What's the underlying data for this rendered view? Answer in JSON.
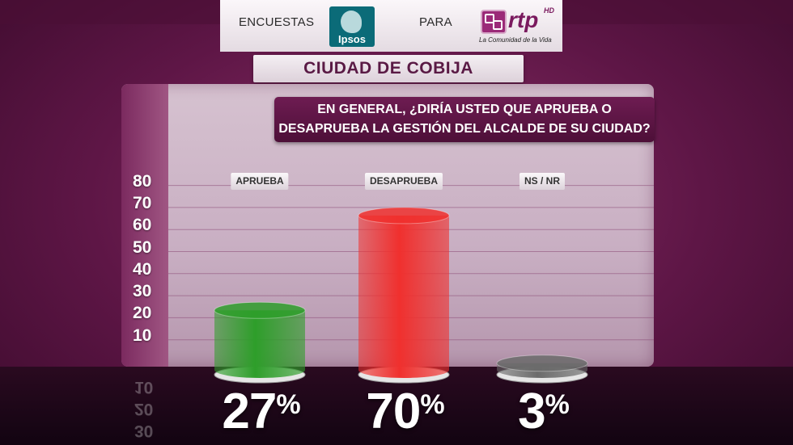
{
  "header": {
    "left_text": "ENCUESTAS",
    "middle_text": "PARA",
    "pollster_logo": "Ipsos",
    "channel_logo": "rtp",
    "channel_badge": "HD",
    "channel_tagline": "La Comunidad de la Vida"
  },
  "city": "CIUDAD DE COBIJA",
  "question_lines": [
    "EN GENERAL, ¿DIRÍA USTED QUE APRUEBA O",
    "DESAPRUEBA LA GESTIÓN DEL ALCALDE DE SU CIUDAD?"
  ],
  "chart_data": {
    "type": "bar",
    "title": "",
    "xlabel": "",
    "ylabel": "",
    "ylim": [
      0,
      80
    ],
    "yticks": [
      10,
      20,
      30,
      40,
      50,
      60,
      70,
      80
    ],
    "grid": true,
    "categories": [
      "APRUEBA",
      "DESAPRUEBA",
      "NS / NR"
    ],
    "values": [
      27,
      70,
      3
    ],
    "labels": [
      "27",
      "70",
      "3"
    ],
    "unit": "%",
    "colors": [
      "#2e9e2a",
      "#f0302e",
      "#6b6b6b"
    ]
  }
}
